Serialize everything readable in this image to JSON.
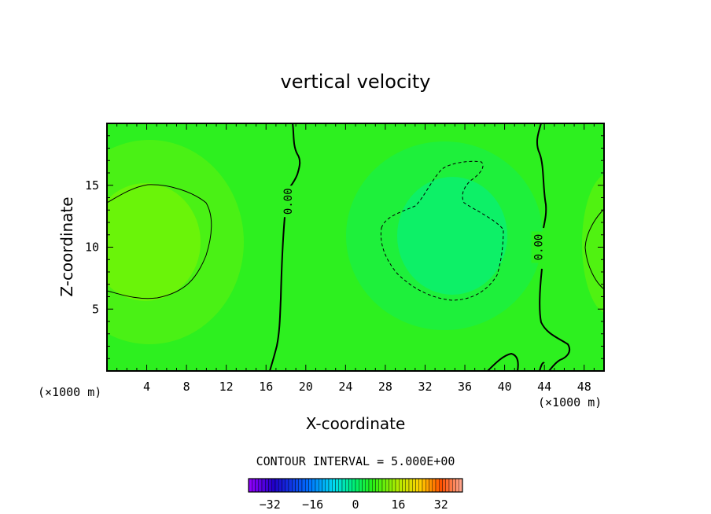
{
  "chart_data": {
    "type": "heatmap",
    "title": "vertical velocity",
    "xlabel": "X-coordinate",
    "ylabel": "Z-coordinate",
    "x_unit_left": "(×1000 m)",
    "x_unit_right": "(×1000 m)",
    "xlim": [
      0,
      50
    ],
    "ylim": [
      0,
      20
    ],
    "x_ticks": [
      4,
      8,
      12,
      16,
      20,
      24,
      28,
      32,
      36,
      40,
      44,
      48
    ],
    "y_ticks": [
      5,
      10,
      15
    ],
    "contour_interval_label": "CONTOUR INTERVAL = 5.000E+00",
    "contour_labels": [
      {
        "text": "0.00",
        "x": 18.2,
        "y": 13.7
      },
      {
        "text": "0.00",
        "x": 43.4,
        "y": 10.0
      }
    ],
    "colorbar": {
      "min": -40,
      "max": 40,
      "ticks": [
        -32,
        -16,
        0,
        16,
        32
      ]
    }
  }
}
